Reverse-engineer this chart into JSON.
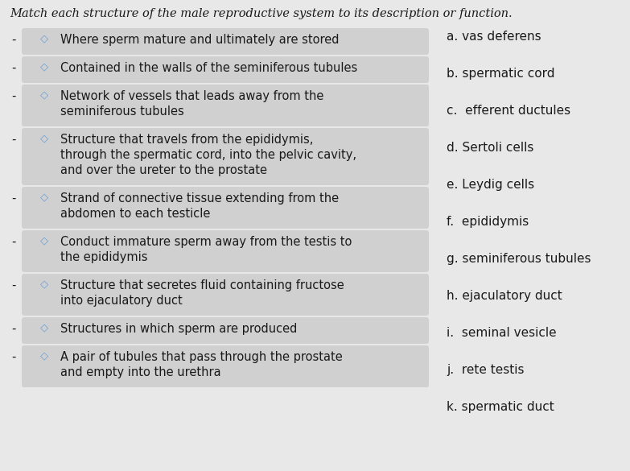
{
  "title": "Match each structure of the male reproductive system to its description or function.",
  "bg_color": "#e8e8e8",
  "left_items": [
    [
      "Where sperm mature and ultimately are stored"
    ],
    [
      "Contained in the walls of the seminiferous tubules"
    ],
    [
      "Network of vessels that leads away from the",
      "seminiferous tubules"
    ],
    [
      "Structure that travels from the epididymis,",
      "through the spermatic cord, into the pelvic cavity,",
      "and over the ureter to the prostate"
    ],
    [
      "Strand of connective tissue extending from the",
      "abdomen to each testicle"
    ],
    [
      "Conduct immature sperm away from the testis to",
      "the epididymis"
    ],
    [
      "Structure that secretes fluid containing fructose",
      "into ejaculatory duct"
    ],
    [
      "Structures in which sperm are produced"
    ],
    [
      "A pair of tubules that pass through the prostate",
      "and empty into the urethra"
    ]
  ],
  "right_items": [
    "a. vas deferens",
    "b. spermatic cord",
    "c.  efferent ductules",
    "d. Sertoli cells",
    "e. Leydig cells",
    "f.  epididymis",
    "g. seminiferous tubules",
    "h. ejaculatory duct",
    "i.  seminal vesicle",
    "j.  rete testis",
    "k. spermatic duct"
  ],
  "title_fontsize": 10.5,
  "item_fontsize": 10.5,
  "box_color": "#d0d0d0",
  "text_color": "#1a1a1a",
  "diamond_color": "#6a9fd8"
}
